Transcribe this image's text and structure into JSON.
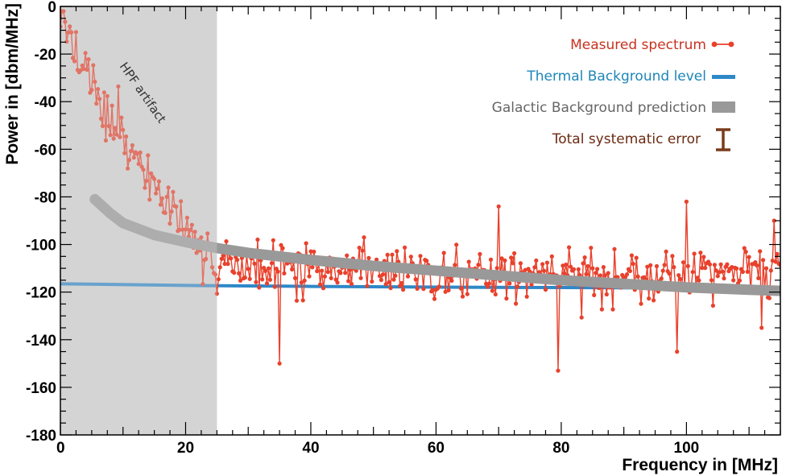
{
  "chart_data": {
    "type": "line",
    "title": "",
    "xlabel": "Frequency in [MHz]",
    "ylabel": "Power in [dbm/MHz]",
    "xlim": [
      0,
      115
    ],
    "ylim": [
      -180,
      0
    ],
    "x_ticks": [
      0,
      20,
      40,
      60,
      80,
      100
    ],
    "y_ticks": [
      0,
      -20,
      -40,
      -60,
      -80,
      -100,
      -120,
      -140,
      -160,
      -180
    ],
    "grid": false,
    "legend_position": "top-right",
    "shaded_region": {
      "x_range": [
        0,
        25
      ],
      "label": "HPF artifact"
    },
    "series": [
      {
        "name": "Measured spectrum",
        "kind": "line-markers",
        "color": "#e8412c",
        "step_MHz": 0.25,
        "envelope_x": [
          0,
          2,
          5,
          10,
          15,
          20,
          25,
          40,
          60,
          80,
          100,
          115
        ],
        "envelope_y": [
          -8,
          -18,
          -35,
          -55,
          -75,
          -95,
          -108,
          -110,
          -112,
          -113,
          -112,
          -112
        ],
        "spread_dB": 10,
        "highlights": [
          {
            "x": 70.0,
            "y": -84
          },
          {
            "x": 79.5,
            "y": -153
          },
          {
            "x": 100.0,
            "y": -82
          },
          {
            "x": 35.0,
            "y": -150
          },
          {
            "x": 98.5,
            "y": -145
          },
          {
            "x": 112.0,
            "y": -135
          },
          {
            "x": 114.0,
            "y": -90
          }
        ]
      },
      {
        "name": "Thermal Background level",
        "kind": "line",
        "color": "#2e88c8",
        "x": [
          0,
          20,
          40,
          60,
          80,
          100,
          115
        ],
        "y": [
          -116.5,
          -117.2,
          -117.6,
          -117.9,
          -118.1,
          -118.3,
          -118.5
        ]
      },
      {
        "name": "Galactic Background prediction",
        "kind": "band",
        "color": "#999999",
        "x": [
          5.5,
          8,
          10,
          15,
          20,
          25,
          30,
          40,
          50,
          60,
          70,
          80,
          90,
          100,
          110,
          115
        ],
        "y": [
          -81,
          -87,
          -91,
          -96,
          -99,
          -101.5,
          -103.5,
          -106.5,
          -109,
          -111,
          -113,
          -115,
          -116.5,
          -118,
          -119,
          -119.5
        ]
      },
      {
        "name": "Total systematic error",
        "kind": "errorbar",
        "color": "#7a3b1e"
      }
    ]
  }
}
